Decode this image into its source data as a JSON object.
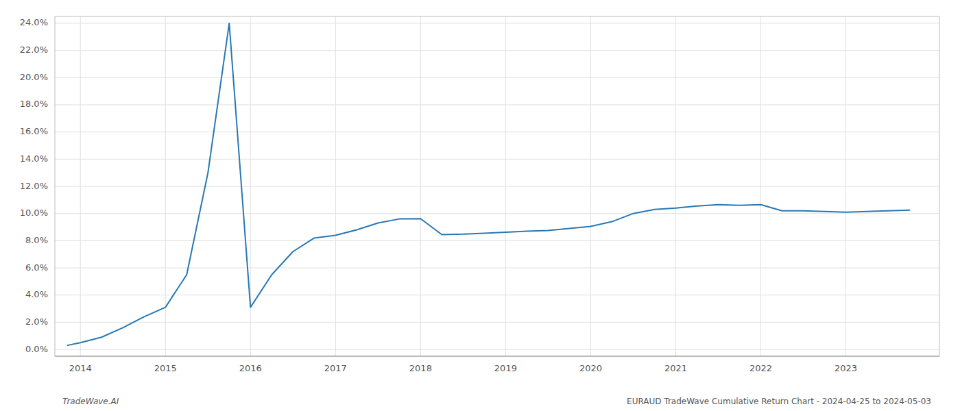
{
  "chart_data": {
    "type": "line",
    "x": [
      2013.85,
      2014.0,
      2014.25,
      2014.5,
      2014.75,
      2015.0,
      2015.25,
      2015.5,
      2015.75,
      2016.0,
      2016.25,
      2016.5,
      2016.75,
      2017.0,
      2017.25,
      2017.5,
      2017.75,
      2018.0,
      2018.25,
      2018.5,
      2018.75,
      2019.0,
      2019.25,
      2019.5,
      2019.75,
      2020.0,
      2020.25,
      2020.5,
      2020.75,
      2021.0,
      2021.25,
      2021.5,
      2021.75,
      2022.0,
      2022.25,
      2022.5,
      2022.75,
      2023.0,
      2023.25,
      2023.5,
      2023.75
    ],
    "values": [
      0.003,
      0.005,
      0.009,
      0.016,
      0.024,
      0.031,
      0.055,
      0.13,
      0.24,
      0.031,
      0.055,
      0.072,
      0.082,
      0.084,
      0.088,
      0.093,
      0.096,
      0.0962,
      0.0845,
      0.0848,
      0.0855,
      0.0862,
      0.087,
      0.0875,
      0.089,
      0.0905,
      0.094,
      0.1,
      0.103,
      0.104,
      0.1055,
      0.1065,
      0.106,
      0.1065,
      0.102,
      0.102,
      0.1015,
      0.101,
      0.1015,
      0.102,
      0.1025
    ],
    "color": "#2878b5",
    "xlim": [
      2013.7,
      2024.1
    ],
    "xticks": [
      2014,
      2015,
      2016,
      2017,
      2018,
      2019,
      2020,
      2021,
      2022,
      2023
    ],
    "ylim": [
      -0.005,
      0.245
    ],
    "yticks": [
      {
        "value": 0.0,
        "label": "0.0%"
      },
      {
        "value": 0.02,
        "label": "2.0%"
      },
      {
        "value": 0.04,
        "label": "4.0%"
      },
      {
        "value": 0.06,
        "label": "6.0%"
      },
      {
        "value": 0.08,
        "label": "8.0%"
      },
      {
        "value": 0.1,
        "label": "10.0%"
      },
      {
        "value": 0.12,
        "label": "12.0%"
      },
      {
        "value": 0.14,
        "label": "14.0%"
      },
      {
        "value": 0.16,
        "label": "16.0%"
      },
      {
        "value": 0.18,
        "label": "18.0%"
      },
      {
        "value": 0.2,
        "label": "20.0%"
      },
      {
        "value": 0.22,
        "label": "22.0%"
      },
      {
        "value": 0.24,
        "label": "24.0%"
      }
    ],
    "grid": true,
    "annotations": [
      "TradeWave.AI",
      "EURAUD TradeWave Cumulative Return Chart - 2024-04-25 to 2024-05-03"
    ]
  }
}
